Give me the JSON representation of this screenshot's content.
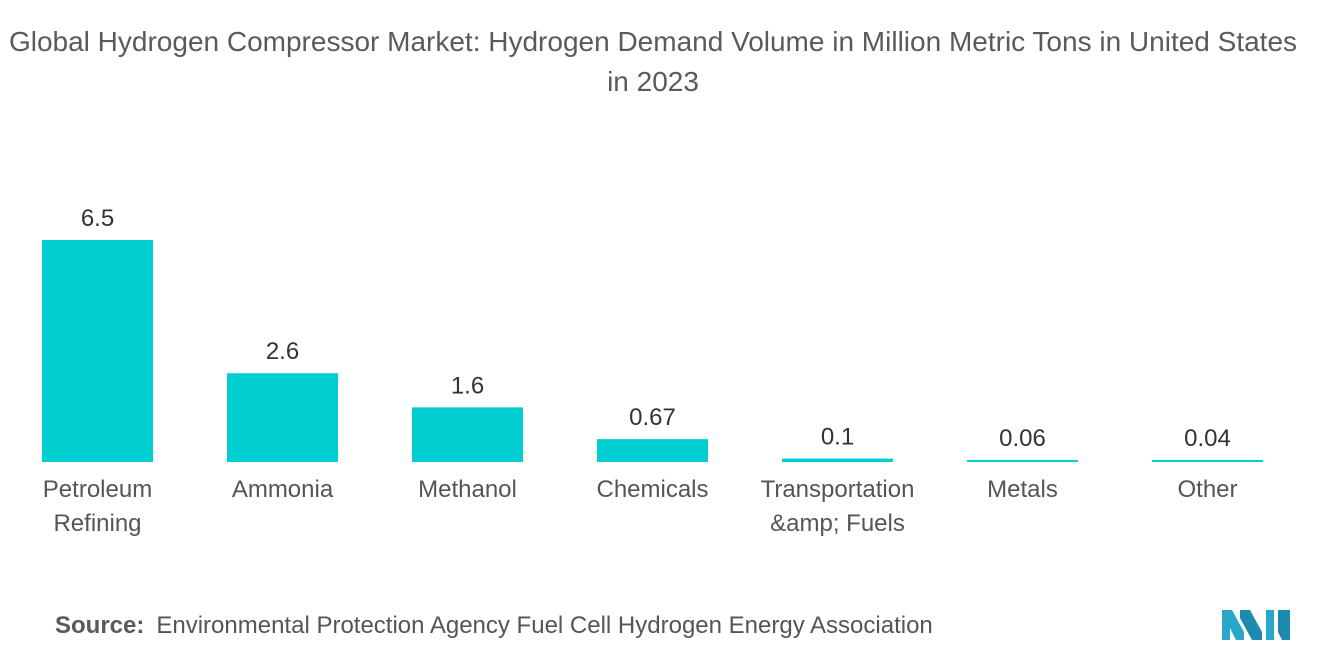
{
  "title": "Global Hydrogen Compressor Market: Hydrogen Demand Volume in Million Metric Tons in United States in 2023",
  "source_label": "Source:",
  "source_text": "Environmental Protection Agency Fuel Cell Hydrogen Energy Association",
  "colors": {
    "bar": "#00CED1",
    "logo": "#2aa6c9"
  },
  "chart_data": {
    "type": "bar",
    "title": "Global Hydrogen Compressor Market: Hydrogen Demand Volume in Million Metric Tons in United States in 2023",
    "categories": [
      [
        "Petroleum",
        "Refining"
      ],
      [
        "Ammonia"
      ],
      [
        "Methanol"
      ],
      [
        "Chemicals"
      ],
      [
        "Transportation",
        "&amp; Fuels"
      ],
      [
        "Metals"
      ],
      [
        "Other"
      ]
    ],
    "values": [
      6.5,
      2.6,
      1.6,
      0.67,
      0.1,
      0.06,
      0.04
    ],
    "value_labels": [
      "6.5",
      "2.6",
      "1.6",
      "0.67",
      "0.1",
      "0.06",
      "0.04"
    ],
    "xlabel": "",
    "ylabel": "",
    "ylim": [
      0,
      6.5
    ],
    "grid": false,
    "legend": "none"
  }
}
